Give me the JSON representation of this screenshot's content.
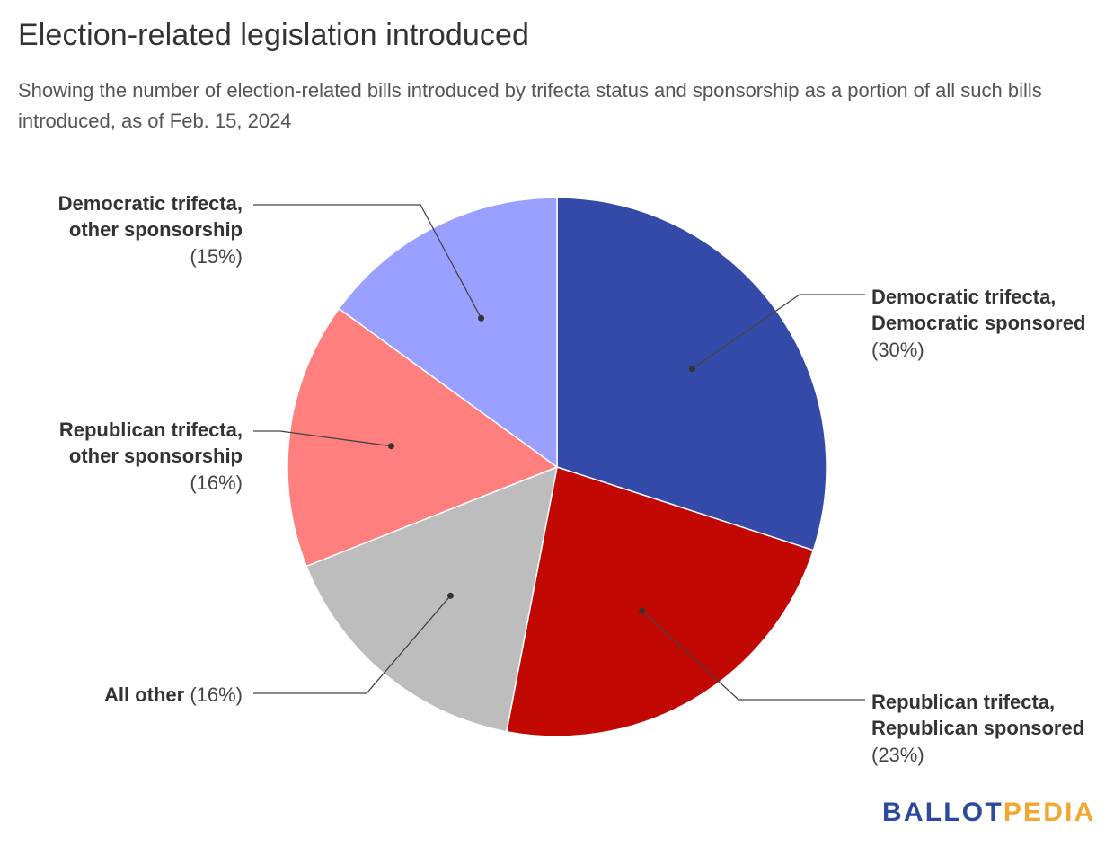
{
  "title": "Election-related legislation introduced",
  "subtitle": "Showing the number of election-related bills introduced by trifecta status and sponsorship as a portion of all such bills introduced, as of Feb. 15, 2024",
  "brand": {
    "part1": "BALLOT",
    "part2": "PEDIA",
    "color1": "#2c4a9e",
    "color2": "#f0a830"
  },
  "chart_data": {
    "type": "pie",
    "start": "12 o'clock, clockwise",
    "slices": [
      {
        "label_lines": [
          "Democratic trifecta,",
          "Democratic sponsored"
        ],
        "pct_text": "(30%)",
        "value": 30,
        "color": "#344aa8"
      },
      {
        "label_lines": [
          "Republican trifecta,",
          "Republican sponsored"
        ],
        "pct_text": "(23%)",
        "value": 23,
        "color": "#c20802"
      },
      {
        "label_lines": [
          "All other"
        ],
        "pct_text": "(16%)",
        "value": 16,
        "color": "#bdbdbd"
      },
      {
        "label_lines": [
          "Republican trifecta,",
          "other sponsorship"
        ],
        "pct_text": "(16%)",
        "value": 16,
        "color": "#ff7f7f"
      },
      {
        "label_lines": [
          "Democratic trifecta,",
          "other sponsorship"
        ],
        "pct_text": "(15%)",
        "value": 15,
        "color": "#9aa0ff"
      }
    ]
  }
}
